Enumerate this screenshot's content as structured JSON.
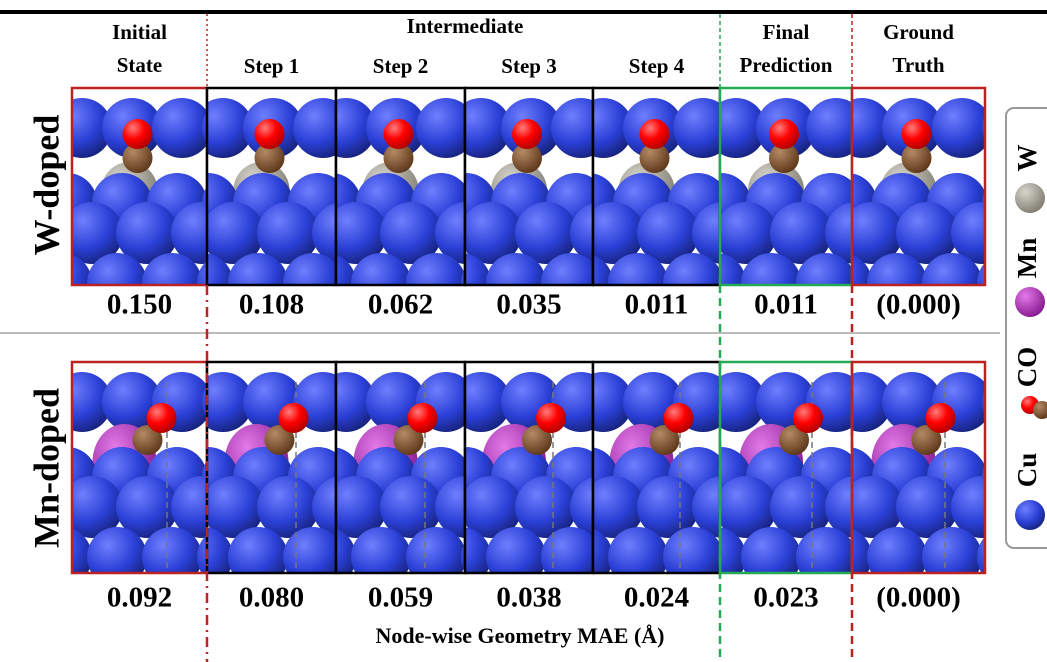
{
  "header": {
    "group": "Intermediate",
    "columns": [
      [
        "Initial",
        "State"
      ],
      [
        "Step 1"
      ],
      [
        "Step 2"
      ],
      [
        "Step 3"
      ],
      [
        "Step 4"
      ],
      [
        "Final",
        "Prediction"
      ],
      [
        "Ground",
        "Truth"
      ]
    ]
  },
  "rows": [
    {
      "label": "W-doped",
      "values": [
        "0.150",
        "0.108",
        "0.062",
        "0.035",
        "0.011",
        "0.011",
        "(0.000)"
      ]
    },
    {
      "label": "Mn-doped",
      "values": [
        "0.092",
        "0.080",
        "0.059",
        "0.038",
        "0.024",
        "0.023",
        "(0.000)"
      ]
    }
  ],
  "caption": "Node-wise Geometry MAE (Å)",
  "legend": [
    "W",
    "Mn",
    "CO",
    "Cu"
  ]
}
